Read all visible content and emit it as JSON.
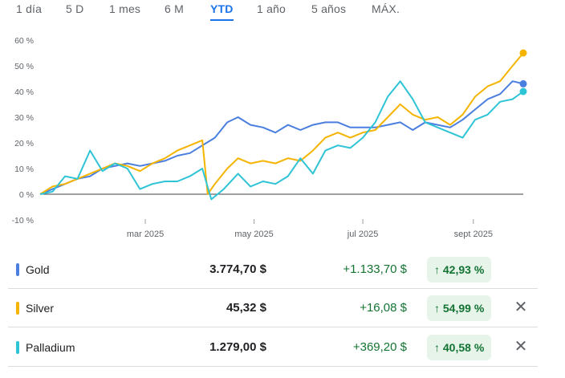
{
  "tabs": [
    "1 día",
    "5 D",
    "1 mes",
    "6 M",
    "YTD",
    "1 año",
    "5 años",
    "MÁX."
  ],
  "active_tab": "YTD",
  "colors": {
    "gold": "#4a7fe0",
    "silver": "#f4b400",
    "palladium": "#2ec4d6",
    "positive": "#137333",
    "accent": "#1a73e8"
  },
  "chart_data": {
    "type": "line",
    "y_unit": "%",
    "ylim": [
      -10,
      60
    ],
    "y_ticks": [
      "60 %",
      "50 %",
      "40 %",
      "30 %",
      "20 %",
      "10 %",
      "0 %",
      "-10 %"
    ],
    "x_tick_labels": [
      "mar 2025",
      "may 2025",
      "jul 2025",
      "sept 2025"
    ],
    "x_range": [
      "2025-01-01",
      "2025-09-29"
    ],
    "series": [
      {
        "name": "Gold",
        "color": "#4a7fe0",
        "points": [
          [
            "2025-01-01",
            0
          ],
          [
            "2025-01-08",
            2
          ],
          [
            "2025-01-15",
            4
          ],
          [
            "2025-01-22",
            6
          ],
          [
            "2025-01-29",
            7
          ],
          [
            "2025-02-05",
            10
          ],
          [
            "2025-02-12",
            11
          ],
          [
            "2025-02-19",
            12
          ],
          [
            "2025-02-26",
            11
          ],
          [
            "2025-03-05",
            12
          ],
          [
            "2025-03-12",
            13
          ],
          [
            "2025-03-19",
            15
          ],
          [
            "2025-03-26",
            16
          ],
          [
            "2025-04-02",
            19
          ],
          [
            "2025-04-09",
            22
          ],
          [
            "2025-04-16",
            28
          ],
          [
            "2025-04-22",
            30
          ],
          [
            "2025-04-29",
            27
          ],
          [
            "2025-05-06",
            26
          ],
          [
            "2025-05-13",
            24
          ],
          [
            "2025-05-20",
            27
          ],
          [
            "2025-05-27",
            25
          ],
          [
            "2025-06-03",
            27
          ],
          [
            "2025-06-10",
            28
          ],
          [
            "2025-06-17",
            28
          ],
          [
            "2025-06-24",
            26
          ],
          [
            "2025-07-01",
            26
          ],
          [
            "2025-07-08",
            26
          ],
          [
            "2025-07-15",
            27
          ],
          [
            "2025-07-22",
            28
          ],
          [
            "2025-07-29",
            25
          ],
          [
            "2025-08-05",
            28
          ],
          [
            "2025-08-12",
            27
          ],
          [
            "2025-08-19",
            26
          ],
          [
            "2025-08-26",
            29
          ],
          [
            "2025-09-02",
            33
          ],
          [
            "2025-09-09",
            37
          ],
          [
            "2025-09-16",
            39
          ],
          [
            "2025-09-23",
            44
          ],
          [
            "2025-09-29",
            43
          ]
        ]
      },
      {
        "name": "Silver",
        "color": "#f4b400",
        "points": [
          [
            "2025-01-01",
            0
          ],
          [
            "2025-01-08",
            3
          ],
          [
            "2025-01-15",
            4
          ],
          [
            "2025-01-22",
            6
          ],
          [
            "2025-01-29",
            8
          ],
          [
            "2025-02-05",
            10
          ],
          [
            "2025-02-12",
            12
          ],
          [
            "2025-02-19",
            11
          ],
          [
            "2025-02-26",
            9
          ],
          [
            "2025-03-05",
            12
          ],
          [
            "2025-03-12",
            14
          ],
          [
            "2025-03-19",
            17
          ],
          [
            "2025-03-26",
            19
          ],
          [
            "2025-04-02",
            21
          ],
          [
            "2025-04-05",
            0
          ],
          [
            "2025-04-09",
            4
          ],
          [
            "2025-04-16",
            10
          ],
          [
            "2025-04-22",
            14
          ],
          [
            "2025-04-29",
            12
          ],
          [
            "2025-05-06",
            13
          ],
          [
            "2025-05-13",
            12
          ],
          [
            "2025-05-20",
            14
          ],
          [
            "2025-05-27",
            13
          ],
          [
            "2025-06-03",
            17
          ],
          [
            "2025-06-10",
            22
          ],
          [
            "2025-06-17",
            24
          ],
          [
            "2025-06-24",
            22
          ],
          [
            "2025-07-01",
            24
          ],
          [
            "2025-07-08",
            25
          ],
          [
            "2025-07-15",
            30
          ],
          [
            "2025-07-22",
            35
          ],
          [
            "2025-07-29",
            31
          ],
          [
            "2025-08-05",
            29
          ],
          [
            "2025-08-12",
            30
          ],
          [
            "2025-08-19",
            27
          ],
          [
            "2025-08-26",
            31
          ],
          [
            "2025-09-02",
            38
          ],
          [
            "2025-09-09",
            42
          ],
          [
            "2025-09-16",
            44
          ],
          [
            "2025-09-23",
            50
          ],
          [
            "2025-09-29",
            55
          ]
        ]
      },
      {
        "name": "Palladium",
        "color": "#2ec4d6",
        "points": [
          [
            "2025-01-01",
            0
          ],
          [
            "2025-01-08",
            1
          ],
          [
            "2025-01-15",
            7
          ],
          [
            "2025-01-22",
            6
          ],
          [
            "2025-01-29",
            17
          ],
          [
            "2025-02-05",
            9
          ],
          [
            "2025-02-12",
            12
          ],
          [
            "2025-02-19",
            10
          ],
          [
            "2025-02-26",
            2
          ],
          [
            "2025-03-05",
            4
          ],
          [
            "2025-03-12",
            5
          ],
          [
            "2025-03-19",
            5
          ],
          [
            "2025-03-26",
            7
          ],
          [
            "2025-04-02",
            10
          ],
          [
            "2025-04-07",
            -2
          ],
          [
            "2025-04-14",
            2
          ],
          [
            "2025-04-22",
            8
          ],
          [
            "2025-04-29",
            3
          ],
          [
            "2025-05-06",
            5
          ],
          [
            "2025-05-13",
            4
          ],
          [
            "2025-05-20",
            7
          ],
          [
            "2025-05-27",
            14
          ],
          [
            "2025-06-03",
            8
          ],
          [
            "2025-06-10",
            17
          ],
          [
            "2025-06-17",
            19
          ],
          [
            "2025-06-24",
            18
          ],
          [
            "2025-07-01",
            22
          ],
          [
            "2025-07-08",
            28
          ],
          [
            "2025-07-15",
            38
          ],
          [
            "2025-07-22",
            44
          ],
          [
            "2025-07-29",
            37
          ],
          [
            "2025-08-05",
            28
          ],
          [
            "2025-08-12",
            26
          ],
          [
            "2025-08-19",
            24
          ],
          [
            "2025-08-26",
            22
          ],
          [
            "2025-09-02",
            29
          ],
          [
            "2025-09-09",
            31
          ],
          [
            "2025-09-16",
            36
          ],
          [
            "2025-09-23",
            37
          ],
          [
            "2025-09-29",
            40
          ]
        ]
      }
    ]
  },
  "rows": [
    {
      "name": "Gold",
      "price": "3.774,70 $",
      "change": "+1.133,70 $",
      "pct": "42,93 %",
      "removable": false
    },
    {
      "name": "Silver",
      "price": "45,32 $",
      "change": "+16,08 $",
      "pct": "54,99 %",
      "removable": true
    },
    {
      "name": "Palladium",
      "price": "1.279,00 $",
      "change": "+369,20 $",
      "pct": "40,58 %",
      "removable": true
    }
  ],
  "arrow_glyph": "↑",
  "close_glyph": "✕"
}
